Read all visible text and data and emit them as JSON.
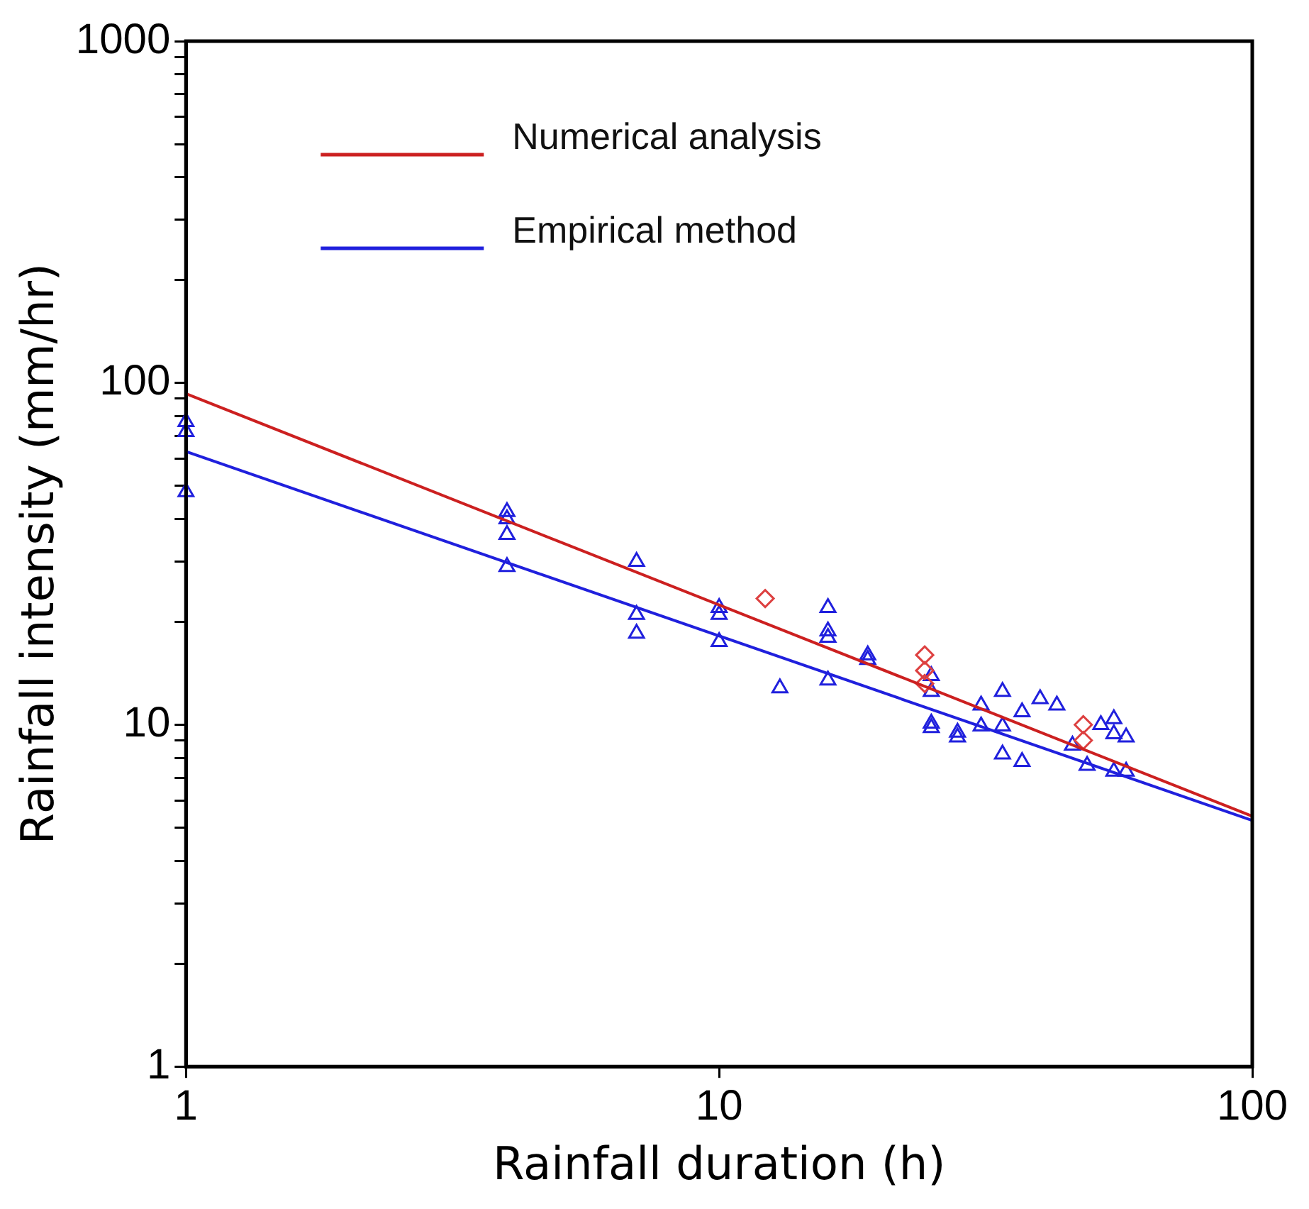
{
  "chart_data": {
    "type": "scatter",
    "xlabel": "Rainfall duration (h)",
    "ylabel": "Rainfall intensity (mm/hr)",
    "log": "xy",
    "xlim": [
      1,
      100
    ],
    "ylim": [
      1,
      1000
    ],
    "xticks": [
      1,
      10,
      100
    ],
    "yticks": [
      1,
      {
        "value": 2,
        "label": null
      },
      {
        "value": 3,
        "label": null
      },
      {
        "value": 4,
        "label": null
      },
      {
        "value": 5,
        "label": null
      },
      {
        "value": 6,
        "label": null
      },
      {
        "value": 7,
        "label": null
      },
      {
        "value": 8,
        "label": null
      },
      {
        "value": 9,
        "label": null
      },
      10,
      {
        "value": 20,
        "label": null
      },
      {
        "value": 30,
        "label": null
      },
      {
        "value": 40,
        "label": null
      },
      {
        "value": 50,
        "label": null
      },
      {
        "value": 60,
        "label": null
      },
      {
        "value": 70,
        "label": null
      },
      {
        "value": 80,
        "label": null
      },
      {
        "value": 90,
        "label": null
      },
      100,
      {
        "value": 200,
        "label": null
      },
      {
        "value": 300,
        "label": null
      },
      {
        "value": 400,
        "label": null
      },
      {
        "value": 500,
        "label": null
      },
      {
        "value": 600,
        "label": null
      },
      {
        "value": 700,
        "label": null
      },
      {
        "value": 800,
        "label": null
      },
      {
        "value": 900,
        "label": null
      },
      1000
    ],
    "grid": false,
    "legend": "top left",
    "series": [
      {
        "name": "Numerical analysis",
        "type": "line",
        "color": "#cc2020",
        "marker": "none",
        "x": [
          1,
          100
        ],
        "values": [
          93,
          5.4
        ]
      },
      {
        "name": "Empirical method",
        "type": "line",
        "color": "#2020dd",
        "marker": "none",
        "x": [
          1,
          100
        ],
        "values": [
          63,
          5.25
        ]
      },
      {
        "color": "#dd4040",
        "marker": "diamond",
        "x": [
          12.2,
          24.3,
          24.3,
          24.3,
          48.2,
          48.2
        ],
        "values": [
          23.4,
          16,
          14.4,
          13.2,
          10,
          9
        ]
      },
      {
        "color": "#2020dd",
        "marker": "triangle",
        "x": [
          1,
          1,
          1,
          4,
          4,
          4,
          4,
          7,
          7,
          7,
          10,
          10,
          10,
          13,
          16,
          16,
          16,
          16,
          19,
          19,
          25,
          25,
          25,
          25,
          28,
          28,
          31,
          31,
          34,
          34,
          34,
          37,
          37,
          40,
          43,
          46,
          49,
          52,
          55,
          55,
          55,
          58,
          58
        ],
        "values": [
          77,
          72,
          48,
          42,
          40,
          36,
          29,
          30,
          21,
          18.5,
          22,
          21,
          17.5,
          12.8,
          22,
          18.8,
          18,
          13.5,
          16,
          15.5,
          13.9,
          12.5,
          10.1,
          9.8,
          9.2,
          9.5,
          11.4,
          9.9,
          12.5,
          9.9,
          8.2,
          10.9,
          7.8,
          11.9,
          11.4,
          8.7,
          7.6,
          10,
          10.4,
          9.4,
          7.3,
          9.2,
          7.3
        ]
      }
    ]
  }
}
